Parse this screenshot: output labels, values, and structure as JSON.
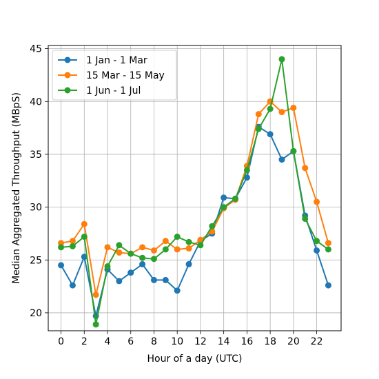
{
  "chart_data": {
    "type": "line",
    "xlabel": "Hour of a day (UTC)",
    "ylabel": "Median Aggregated Throughput (MBpS)",
    "x": [
      0,
      1,
      2,
      3,
      4,
      5,
      6,
      7,
      8,
      9,
      10,
      11,
      12,
      13,
      14,
      15,
      16,
      17,
      18,
      19,
      20,
      21,
      22,
      23
    ],
    "xlim": [
      -1.1,
      24.1
    ],
    "ylim": [
      18.3,
      45.3
    ],
    "xticks": [
      0,
      2,
      4,
      6,
      8,
      10,
      12,
      14,
      16,
      18,
      20,
      22
    ],
    "xtick_labels": [
      "0",
      "2",
      "4",
      "6",
      "8",
      "10",
      "12",
      "14",
      "16",
      "18",
      "20",
      "22"
    ],
    "yticks": [
      20,
      25,
      30,
      35,
      40,
      45
    ],
    "ytick_labels": [
      "20",
      "25",
      "30",
      "35",
      "40",
      "45"
    ],
    "grid": true,
    "legend_position": "upper-left",
    "series": [
      {
        "name": "1 Jan - 1 Mar",
        "color": "#1f77b4",
        "values": [
          24.5,
          22.6,
          25.3,
          19.7,
          24.1,
          23.0,
          23.8,
          24.6,
          23.1,
          23.1,
          22.1,
          24.6,
          26.8,
          27.5,
          30.9,
          30.8,
          32.8,
          37.6,
          36.9,
          34.5,
          35.3,
          29.2,
          25.9,
          22.6
        ]
      },
      {
        "name": "15 Mar - 15 May",
        "color": "#ff7f0e",
        "values": [
          26.6,
          26.8,
          28.4,
          21.7,
          26.2,
          25.7,
          25.6,
          26.2,
          25.9,
          26.8,
          26.0,
          26.1,
          26.9,
          27.7,
          29.9,
          30.7,
          33.9,
          38.8,
          40.0,
          39.0,
          39.4,
          33.7,
          30.5,
          26.6
        ]
      },
      {
        "name": "1 Jun - 1 Jul",
        "color": "#2ca02c",
        "values": [
          26.2,
          26.3,
          27.2,
          18.9,
          24.4,
          26.4,
          25.6,
          25.2,
          25.1,
          26.0,
          27.2,
          26.7,
          26.4,
          28.2,
          30.0,
          30.8,
          33.5,
          37.4,
          39.3,
          44.0,
          35.3,
          28.9,
          26.8,
          26.0
        ]
      }
    ]
  }
}
